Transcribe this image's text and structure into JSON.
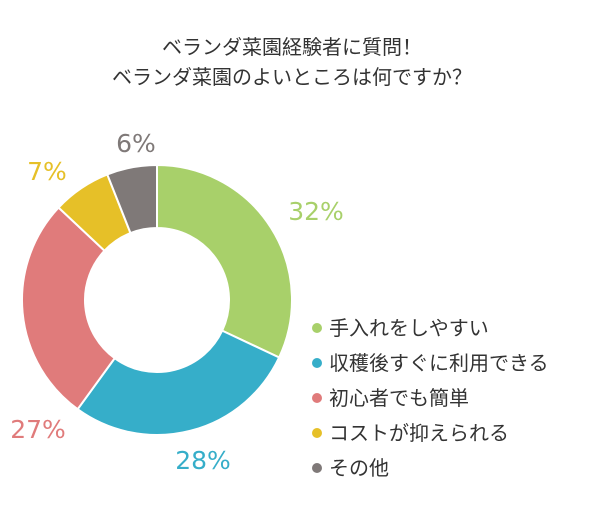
{
  "chart_data": {
    "type": "pie",
    "title": [
      "ベランダ菜園経験者に質問！",
      "ベランダ菜園のよいところは何ですか？"
    ],
    "categories": [
      "手入れをしやすい",
      "収穫後すぐに利用できる",
      "初心者でも簡単",
      "コストが抑えられる",
      "その他"
    ],
    "values": [
      32,
      28,
      27,
      7,
      6
    ],
    "value_labels": [
      "32%",
      "28%",
      "27%",
      "7%",
      "6%"
    ],
    "colors": [
      "#a8d06a",
      "#36aec9",
      "#e07b7b",
      "#e6c028",
      "#7f7978"
    ],
    "donut": true,
    "legend_position": "right"
  }
}
